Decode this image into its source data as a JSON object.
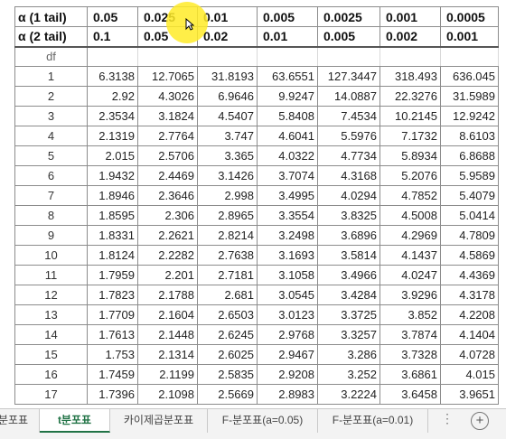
{
  "header": {
    "row1": [
      "α (1 tail)",
      "0.05",
      "0.025",
      "0.01",
      "0.005",
      "0.0025",
      "0.001",
      "0.0005"
    ],
    "row2": [
      "α (2 tail)",
      "0.1",
      "0.05",
      "0.02",
      "0.01",
      "0.005",
      "0.002",
      "0.001"
    ]
  },
  "df_label": "df",
  "rows": [
    [
      "1",
      "6.3138",
      "12.7065",
      "31.8193",
      "63.6551",
      "127.3447",
      "318.493",
      "636.045"
    ],
    [
      "2",
      "2.92",
      "4.3026",
      "6.9646",
      "9.9247",
      "14.0887",
      "22.3276",
      "31.5989"
    ],
    [
      "3",
      "2.3534",
      "3.1824",
      "4.5407",
      "5.8408",
      "7.4534",
      "10.2145",
      "12.9242"
    ],
    [
      "4",
      "2.1319",
      "2.7764",
      "3.747",
      "4.6041",
      "5.5976",
      "7.1732",
      "8.6103"
    ],
    [
      "5",
      "2.015",
      "2.5706",
      "3.365",
      "4.0322",
      "4.7734",
      "5.8934",
      "6.8688"
    ],
    [
      "6",
      "1.9432",
      "2.4469",
      "3.1426",
      "3.7074",
      "4.3168",
      "5.2076",
      "5.9589"
    ],
    [
      "7",
      "1.8946",
      "2.3646",
      "2.998",
      "3.4995",
      "4.0294",
      "4.7852",
      "5.4079"
    ],
    [
      "8",
      "1.8595",
      "2.306",
      "2.8965",
      "3.3554",
      "3.8325",
      "4.5008",
      "5.0414"
    ],
    [
      "9",
      "1.8331",
      "2.2621",
      "2.8214",
      "3.2498",
      "3.6896",
      "4.2969",
      "4.7809"
    ],
    [
      "10",
      "1.8124",
      "2.2282",
      "2.7638",
      "3.1693",
      "3.5814",
      "4.1437",
      "4.5869"
    ],
    [
      "11",
      "1.7959",
      "2.201",
      "2.7181",
      "3.1058",
      "3.4966",
      "4.0247",
      "4.4369"
    ],
    [
      "12",
      "1.7823",
      "2.1788",
      "2.681",
      "3.0545",
      "3.4284",
      "3.9296",
      "4.3178"
    ],
    [
      "13",
      "1.7709",
      "2.1604",
      "2.6503",
      "3.0123",
      "3.3725",
      "3.852",
      "4.2208"
    ],
    [
      "14",
      "1.7613",
      "2.1448",
      "2.6245",
      "2.9768",
      "3.3257",
      "3.7874",
      "4.1404"
    ],
    [
      "15",
      "1.753",
      "2.1314",
      "2.6025",
      "2.9467",
      "3.286",
      "3.7328",
      "4.0728"
    ],
    [
      "16",
      "1.7459",
      "2.1199",
      "2.5835",
      "2.9208",
      "3.252",
      "3.6861",
      "4.015"
    ],
    [
      "17",
      "1.7396",
      "2.1098",
      "2.5669",
      "2.8983",
      "3.2224",
      "3.6458",
      "3.9651"
    ]
  ],
  "tabs": [
    "분포표",
    "t분포표",
    "카이제곱분포표",
    "F-분포표(a=0.05)",
    "F-분포표(a=0.01)"
  ],
  "active_tab": "t분포표",
  "add_sheet_icon": "plus-circle-icon",
  "sheet_separator": "⋮",
  "colors": {
    "highlight": "#FFEB28",
    "active_tab": "#217346",
    "grid": "#8c8c8c"
  }
}
